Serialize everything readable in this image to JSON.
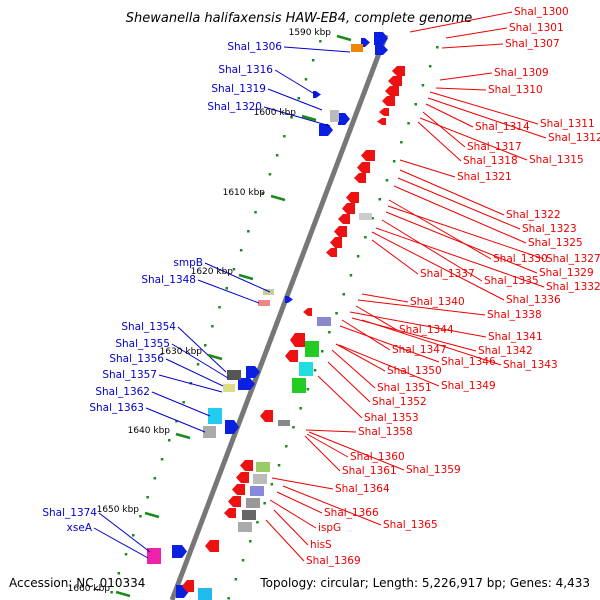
{
  "title": "Shewanella halifaxensis HAW-EB4, complete genome",
  "footer": {
    "accession": "Accession: NC_010334",
    "topology": "Topology: circular; Length: 5,226,917 bp; Genes: 4,433"
  },
  "colors": {
    "forward_label": "#0000cc",
    "reverse_label": "#ee0000",
    "backbone": "#777777",
    "dots": "#1a8a1a"
  },
  "scale_ticks": [
    "1590 kbp",
    "1600 kbp",
    "1610 kbp",
    "1620 kbp",
    "1630 kbp",
    "1640 kbp",
    "1650 kbp",
    "1660 kbp"
  ],
  "forward_genes": [
    "Shal_1306",
    "Shal_1316",
    "Shal_1319",
    "Shal_1320",
    "smpB",
    "Shal_1348",
    "Shal_1354",
    "Shal_1355",
    "Shal_1356",
    "Shal_1357",
    "Shal_1362",
    "Shal_1363",
    "Shal_1374",
    "xseA"
  ],
  "reverse_genes": [
    "Shal_1300",
    "Shal_1301",
    "Shal_1307",
    "Shal_1309",
    "Shal_1310",
    "Shal_1311",
    "Shal_1312",
    "Shal_1314",
    "Shal_1317",
    "Shal_1315",
    "Shal_1318",
    "Shal_1321",
    "Shal_1322",
    "Shal_1323",
    "Shal_1325",
    "Shal_1330",
    "Shal_1327",
    "Shal_1329",
    "Shal_1335",
    "Shal_1337",
    "Shal_1332",
    "Shal_1336",
    "Shal_1340",
    "Shal_1338",
    "Shal_1344",
    "Shal_1341",
    "Shal_1347",
    "Shal_1342",
    "Shal_1346",
    "Shal_1343",
    "Shal_1350",
    "Shal_1351",
    "Shal_1349",
    "Shal_1352",
    "Shal_1353",
    "Shal_1358",
    "Shal_1360",
    "Shal_1361",
    "Shal_1359",
    "Shal_1364",
    "Shal_1366",
    "Shal_1365",
    "ispG",
    "hisS",
    "Shal_1369"
  ]
}
